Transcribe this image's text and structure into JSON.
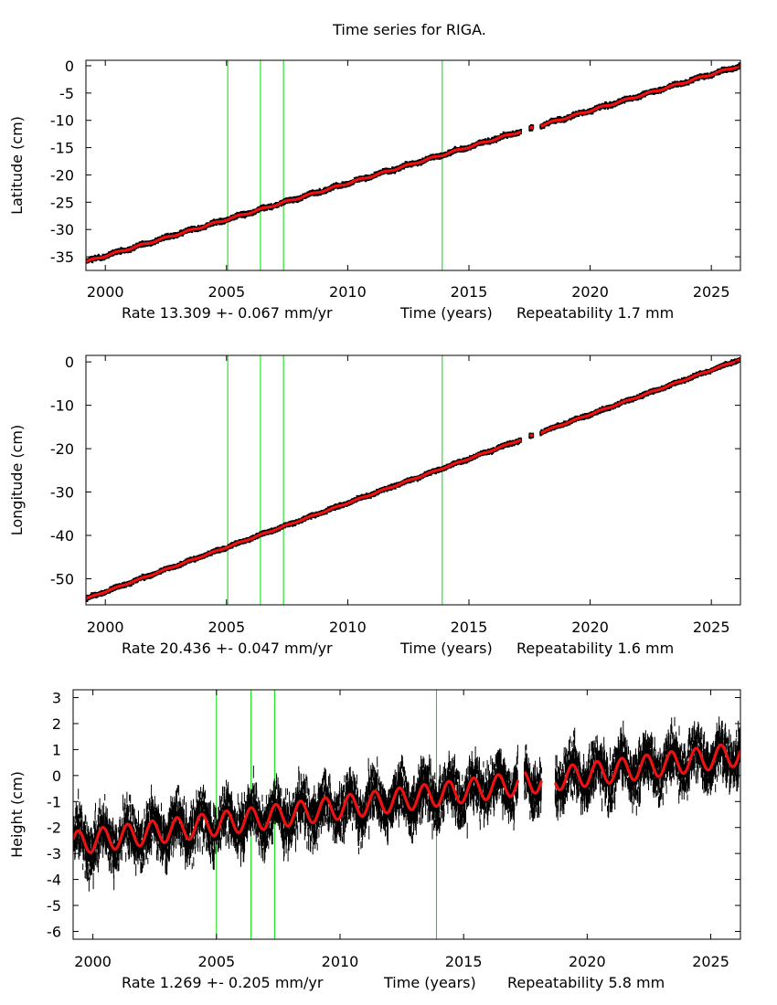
{
  "title": "Time series for RIGA.",
  "colors": {
    "data": "#000000",
    "model": "#ee1111",
    "breaks": "#00dd00"
  },
  "chart_data": [
    {
      "type": "scatter",
      "ylabel": "Latitude (cm)",
      "xlabel": "Time (years)",
      "rate": "Rate 13.309 +- 0.067 mm/yr",
      "repeatability": "Repeatability 1.7 mm",
      "xlim": [
        1999.2,
        2026.2
      ],
      "ylim": [
        -37.5,
        1
      ],
      "xticks": [
        2000,
        2005,
        2010,
        2015,
        2020,
        2025
      ],
      "xtick_labels": [
        "2000",
        "2005",
        "2010",
        "2015",
        "2020",
        "2025"
      ],
      "yticks": [
        0,
        -5,
        -10,
        -15,
        -20,
        -25,
        -30,
        -35
      ],
      "ytick_labels": [
        "0",
        "-5",
        "-10",
        "-15",
        "-20",
        "-25",
        "-30",
        "-35"
      ],
      "breaks": [
        2005.05,
        2006.4,
        2007.35,
        2013.9
      ],
      "gaps": [
        [
          2017.15,
          2017.5
        ],
        [
          2017.65,
          2017.95
        ]
      ],
      "trend": {
        "t0": 1999.2,
        "v0": -35.9,
        "rate": 1.3309,
        "amp": 0.15,
        "phase": 0.0
      },
      "noise": 0.25
    },
    {
      "type": "scatter",
      "ylabel": "Longitude (cm)",
      "xlabel": "Time (years)",
      "rate": "Rate 20.436 +- 0.047 mm/yr",
      "repeatability": "Repeatability 1.6 mm",
      "xlim": [
        1999.2,
        2026.2
      ],
      "ylim": [
        -56,
        1.5
      ],
      "xticks": [
        2000,
        2005,
        2010,
        2015,
        2020,
        2025
      ],
      "xtick_labels": [
        "2000",
        "2005",
        "2010",
        "2015",
        "2020",
        "2025"
      ],
      "yticks": [
        0,
        -10,
        -20,
        -30,
        -40,
        -50
      ],
      "ytick_labels": [
        "0",
        "-10",
        "-20",
        "-30",
        "-40",
        "-50"
      ],
      "breaks": [
        2005.05,
        2006.4,
        2007.35,
        2013.9
      ],
      "gaps": [
        [
          2017.15,
          2017.5
        ],
        [
          2017.65,
          2017.95
        ]
      ],
      "trend": {
        "t0": 1999.2,
        "v0": -54.6,
        "rate": 2.0436,
        "amp": 0.12,
        "phase": 0.0
      },
      "noise": 0.25
    },
    {
      "type": "scatter",
      "ylabel": "Height (cm)",
      "xlabel": "Time (years)",
      "rate": "Rate 1.269 +- 0.205 mm/yr",
      "repeatability": "Repeatability 5.8 mm",
      "xlim": [
        1999.2,
        2026.2
      ],
      "ylim": [
        -6.3,
        3.3
      ],
      "xticks": [
        2000,
        2005,
        2010,
        2015,
        2020,
        2025
      ],
      "xtick_labels": [
        "2000",
        "2005",
        "2010",
        "2015",
        "2020",
        "2025"
      ],
      "yticks": [
        3,
        2,
        1,
        0,
        -1,
        -2,
        -3,
        -4,
        -5,
        -6
      ],
      "ytick_labels": [
        "3",
        "2",
        "1",
        "0",
        "-1",
        "-2",
        "-3",
        "-4",
        "-5",
        "-6"
      ],
      "breaks": [
        2005.0,
        2006.4,
        2007.35,
        2013.9
      ],
      "gaps": [
        [
          2017.2,
          2017.45
        ],
        [
          2018.15,
          2018.7
        ]
      ],
      "trend": {
        "t0": 1999.2,
        "v0": -2.6,
        "rate": 0.1269,
        "amp": 0.45,
        "phase": 0.3
      },
      "noise": 0.9
    }
  ]
}
